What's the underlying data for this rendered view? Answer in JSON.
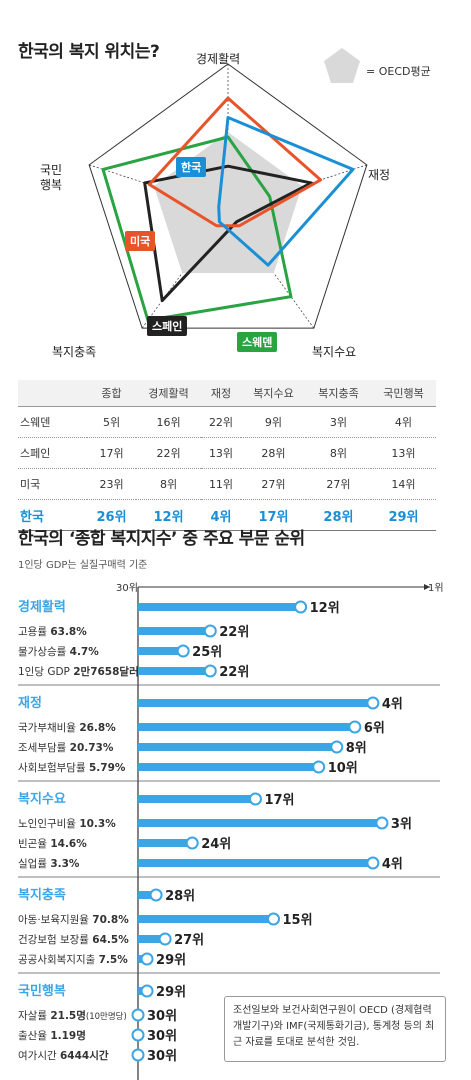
{
  "radar": {
    "title": "한국의 복지 위치는?",
    "legend_label": "= OECD평균",
    "axes": [
      "경제활력",
      "재정",
      "복지수요",
      "복지충족",
      "국민행복"
    ],
    "axis_display": [
      "경제활력",
      "재정",
      "복지수요",
      "복지충족",
      "국민\n행복"
    ],
    "series_tags": [
      "한국",
      "미국",
      "스페인",
      "스웨덴"
    ]
  },
  "colors": {
    "korea": "#1a8fd6",
    "usa": "#e8542a",
    "spain": "#222222",
    "sweden": "#2aa343",
    "oecd": "#d9d9d9",
    "bar": "#3ba6e6"
  },
  "table": {
    "headers": [
      "",
      "종합",
      "경제활력",
      "재정",
      "복지수요",
      "복지충족",
      "국민행복"
    ],
    "rows": [
      [
        "스웨덴",
        "5위",
        "16위",
        "22위",
        "9위",
        "3위",
        "4위"
      ],
      [
        "스페인",
        "17위",
        "22위",
        "13위",
        "28위",
        "8위",
        "13위"
      ],
      [
        "미국",
        "23위",
        "8위",
        "11위",
        "27위",
        "27위",
        "14위"
      ],
      [
        "한국",
        "26위",
        "12위",
        "4위",
        "17위",
        "28위",
        "29위"
      ]
    ]
  },
  "bars": {
    "title": "한국의 ‘종합 복지지수’ 중 주요 부문 순위",
    "subtitle": "1인당 GDP는 실질구매력 기준",
    "axis_start_label": "30위",
    "axis_end_label": "1위",
    "rank_suffix": "위",
    "note": "조선일보와 보건사회연구원이 OECD (경제협력개발기구)와 IMF(국제통화기금), 통계청 등의 최근 자료를 토대로 분석한 것임."
  },
  "chart_data": [
    {
      "type": "radar",
      "title": "한국의 복지 위치는?",
      "axes": [
        "경제활력",
        "재정",
        "복지수요",
        "복지충족",
        "국민행복"
      ],
      "value_meaning": "OECD rank (1 = best, 30 = worst)",
      "series": [
        {
          "name": "한국",
          "values": [
            12,
            4,
            17,
            28,
            29
          ]
        },
        {
          "name": "미국",
          "values": [
            8,
            11,
            27,
            27,
            14
          ]
        },
        {
          "name": "스페인",
          "values": [
            22,
            13,
            28,
            8,
            13
          ]
        },
        {
          "name": "스웨덴",
          "values": [
            16,
            22,
            9,
            3,
            4
          ]
        },
        {
          "name": "OECD평균",
          "values": [
            15,
            15,
            15,
            15,
            15
          ]
        }
      ]
    },
    {
      "type": "table",
      "columns": [
        "종합",
        "경제활력",
        "재정",
        "복지수요",
        "복지충족",
        "국민행복"
      ],
      "rows": {
        "스웨덴": [
          5,
          16,
          22,
          9,
          3,
          4
        ],
        "스페인": [
          17,
          22,
          13,
          28,
          8,
          13
        ],
        "미국": [
          23,
          8,
          11,
          27,
          27,
          14
        ],
        "한국": [
          26,
          12,
          4,
          17,
          28,
          29
        ]
      }
    },
    {
      "type": "bar",
      "orientation": "horizontal",
      "title": "한국의 ‘종합 복지지수’ 중 주요 부문 순위",
      "subtitle": "1인당 GDP는 실질구매력 기준",
      "xlim": [
        30,
        1
      ],
      "groups": [
        {
          "category": "경제활력",
          "rank": 12,
          "items": [
            {
              "label": "고용률",
              "value": "63.8%",
              "rank": 22
            },
            {
              "label": "물가상승률",
              "value": "4.7%",
              "rank": 25
            },
            {
              "label": "1인당 GDP",
              "value": "2만7658달러",
              "rank": 22
            }
          ]
        },
        {
          "category": "재정",
          "rank": 4,
          "items": [
            {
              "label": "국가부채비율",
              "value": "26.8%",
              "rank": 6
            },
            {
              "label": "조세부담률",
              "value": "20.73%",
              "rank": 8
            },
            {
              "label": "사회보험부담률",
              "value": "5.79%",
              "rank": 10
            }
          ]
        },
        {
          "category": "복지수요",
          "rank": 17,
          "items": [
            {
              "label": "노인인구비율",
              "value": "10.3%",
              "rank": 3
            },
            {
              "label": "빈곤율",
              "value": "14.6%",
              "rank": 24
            },
            {
              "label": "실업률",
              "value": "3.3%",
              "rank": 4
            }
          ]
        },
        {
          "category": "복지충족",
          "rank": 28,
          "items": [
            {
              "label": "아동·보육지원율",
              "value": "70.8%",
              "rank": 15
            },
            {
              "label": "건강보험 보장률",
              "value": "64.5%",
              "rank": 27
            },
            {
              "label": "공공사회복지지출",
              "value": "7.5%",
              "rank": 29
            }
          ]
        },
        {
          "category": "국민행복",
          "rank": 29,
          "items": [
            {
              "label": "자살률",
              "value": "21.5명",
              "note": "(10만명당)",
              "rank": 30
            },
            {
              "label": "출산율",
              "value": "1.19명",
              "rank": 30
            },
            {
              "label": "여가시간",
              "value": "6444시간",
              "rank": 30
            }
          ]
        }
      ]
    }
  ]
}
